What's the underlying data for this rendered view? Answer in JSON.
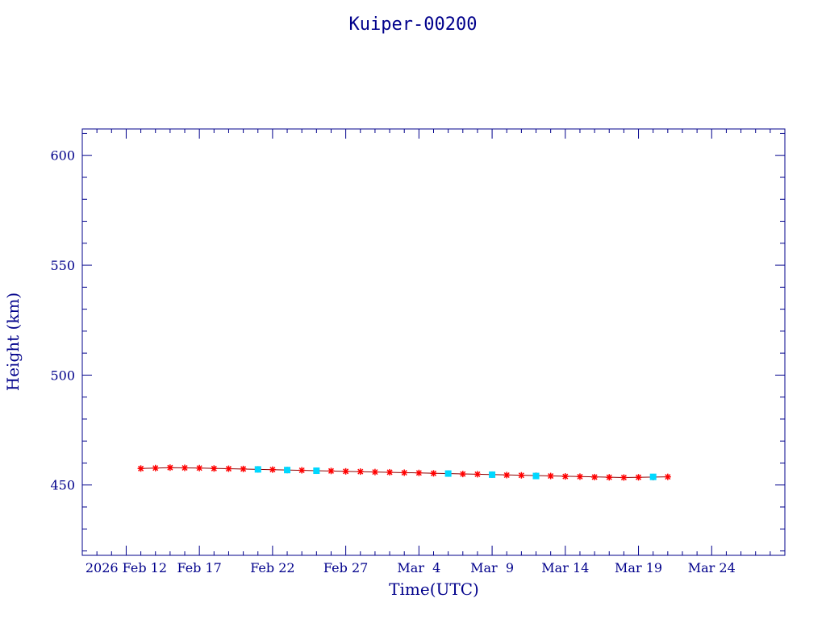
{
  "chart_data": {
    "type": "scatter",
    "title": "Kuiper-00200",
    "xlabel": "Time(UTC)",
    "ylabel": "Height (km)",
    "xlim": [
      "2026-02-09",
      "2026-03-29"
    ],
    "ylim": [
      418,
      612
    ],
    "x_tick_labels": [
      {
        "date": "2026-02-12",
        "label": "2026 Feb 12"
      },
      {
        "date": "2026-02-17",
        "label": "Feb 17"
      },
      {
        "date": "2026-02-22",
        "label": "Feb 22"
      },
      {
        "date": "2026-02-27",
        "label": "Feb 27"
      },
      {
        "date": "2026-03-04",
        "label": "Mar  4"
      },
      {
        "date": "2026-03-09",
        "label": "Mar  9"
      },
      {
        "date": "2026-03-14",
        "label": "Mar 14"
      },
      {
        "date": "2026-03-19",
        "label": "Mar 19"
      },
      {
        "date": "2026-03-24",
        "label": "Mar 24"
      }
    ],
    "y_ticks": [
      450,
      500,
      550,
      600
    ],
    "grid": false,
    "colors": {
      "axes": "#00008b",
      "line": "#8b0000",
      "series_primary": "#ff0000",
      "series_secondary": "#00d8ff"
    },
    "series": [
      {
        "marker": "star",
        "color": "#ff0000",
        "x": [
          "2026-02-13",
          "2026-02-14",
          "2026-02-15",
          "2026-02-16",
          "2026-02-17",
          "2026-02-18",
          "2026-02-19",
          "2026-02-20",
          "2026-02-21",
          "2026-02-22",
          "2026-02-23",
          "2026-02-24",
          "2026-02-25",
          "2026-02-26",
          "2026-02-27",
          "2026-02-28",
          "2026-03-01",
          "2026-03-02",
          "2026-03-03",
          "2026-03-04",
          "2026-03-05",
          "2026-03-06",
          "2026-03-07",
          "2026-03-08",
          "2026-03-09",
          "2026-03-10",
          "2026-03-11",
          "2026-03-12",
          "2026-03-13",
          "2026-03-14",
          "2026-03-15",
          "2026-03-16",
          "2026-03-17",
          "2026-03-18",
          "2026-03-19",
          "2026-03-20",
          "2026-03-21"
        ],
        "y": [
          457.5,
          457.7,
          457.9,
          457.8,
          457.7,
          457.5,
          457.4,
          457.3,
          457.1,
          457.0,
          456.8,
          456.7,
          456.5,
          456.4,
          456.2,
          456.1,
          455.9,
          455.8,
          455.6,
          455.5,
          455.3,
          455.2,
          455.0,
          454.9,
          454.7,
          454.5,
          454.4,
          454.2,
          454.1,
          453.9,
          453.8,
          453.6,
          453.5,
          453.4,
          453.5,
          453.6,
          453.7
        ]
      },
      {
        "marker": "square",
        "color": "#00d8ff",
        "x": [
          "2026-02-21",
          "2026-02-23",
          "2026-02-25",
          "2026-03-06",
          "2026-03-09",
          "2026-03-12",
          "2026-03-20"
        ],
        "y": [
          457.1,
          456.8,
          456.5,
          455.2,
          454.7,
          454.1,
          453.7
        ]
      }
    ],
    "trend_line": {
      "x": [
        "2026-02-13",
        "2026-02-15",
        "2026-02-17",
        "2026-03-18",
        "2026-03-21"
      ],
      "y": [
        457.5,
        457.9,
        457.7,
        453.4,
        453.7
      ]
    }
  }
}
